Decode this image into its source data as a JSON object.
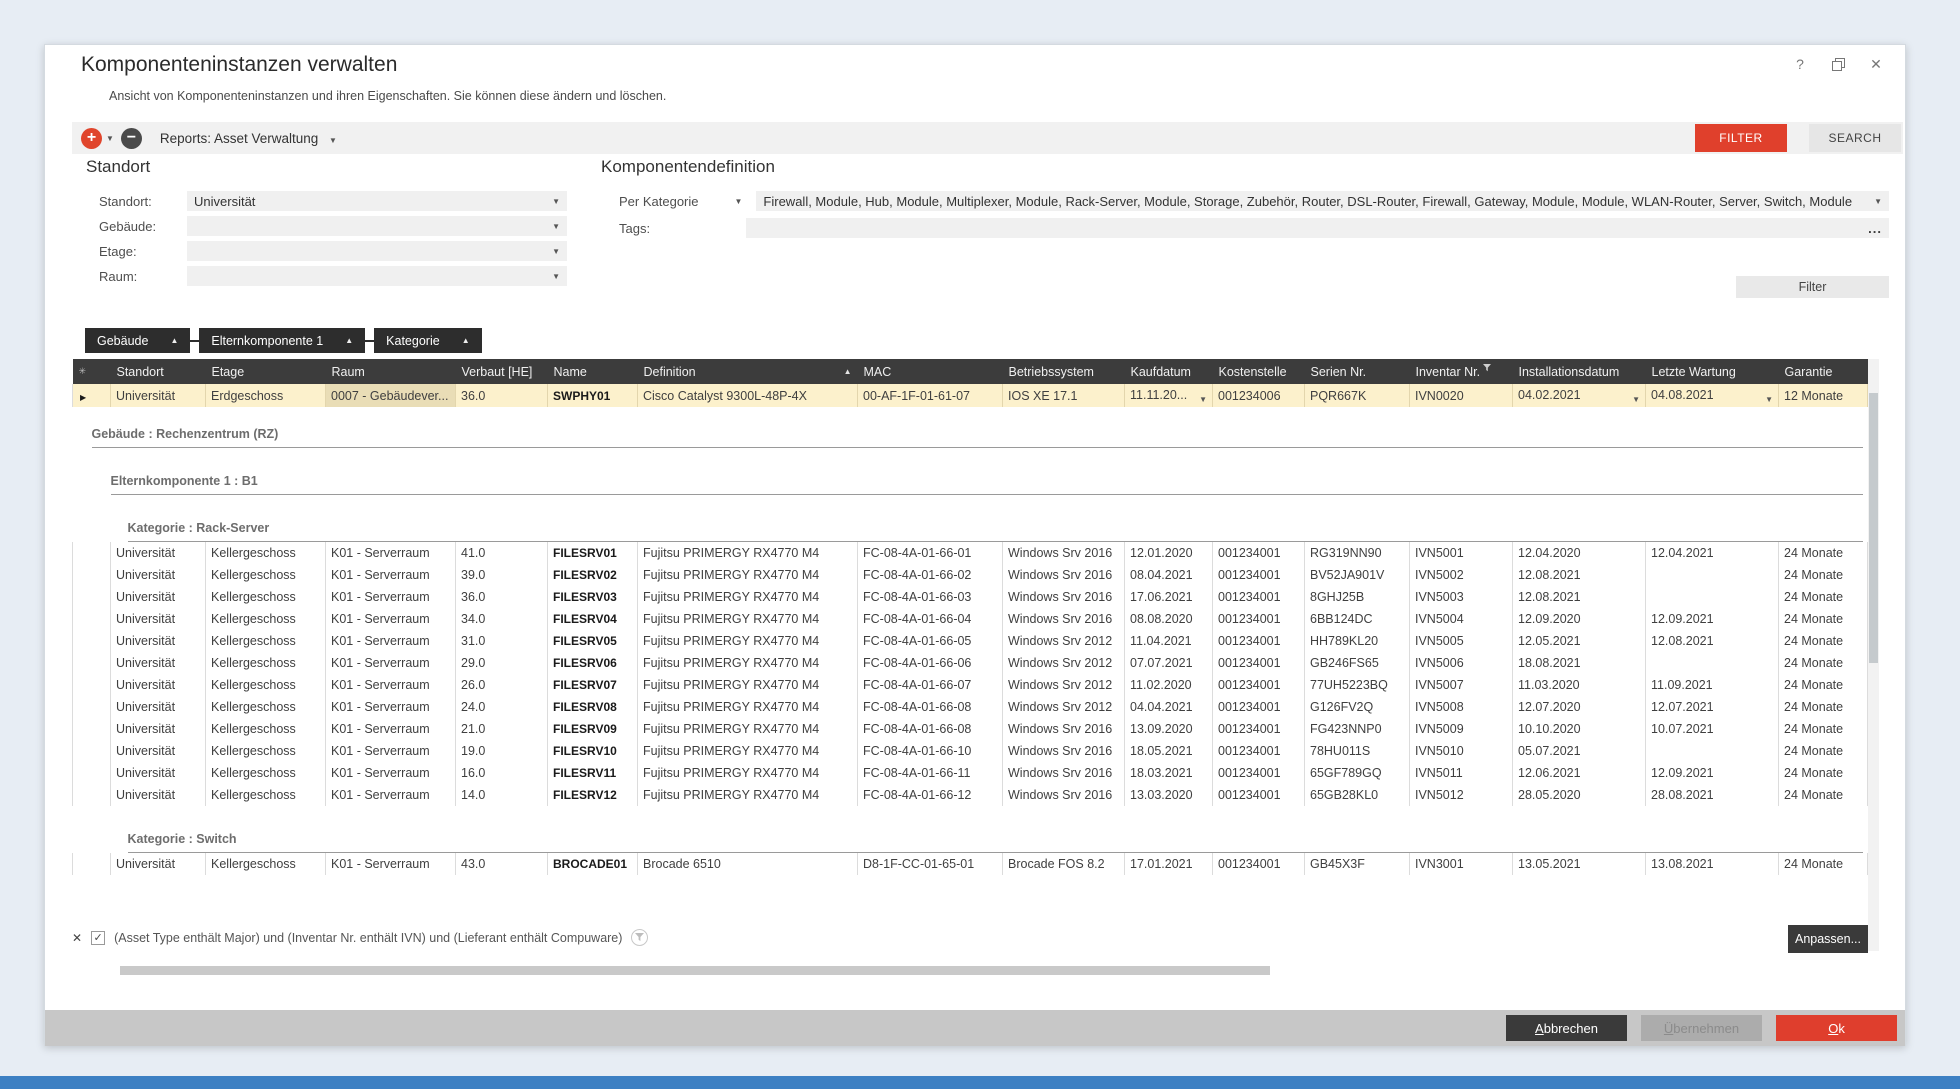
{
  "window": {
    "title": "Komponenteninstanzen verwalten",
    "subtitle": "Ansicht von Komponenteninstanzen und ihren Eigenschaften. Sie können diese ändern und löschen."
  },
  "icons": {
    "add": "+",
    "remove": "−",
    "caret_down": "▼",
    "caret_up": "▲",
    "sort_asc": "▲",
    "row_marker": "▶",
    "close": "✕",
    "help": "?",
    "more": "...",
    "check": "✓",
    "asterisk": "✳"
  },
  "colors": {
    "accent_red": "#e0402c",
    "dark_button": "#3a3a3a",
    "selected_row_bg": "#fcf1cc",
    "selected_cell_bg": "#e9ddb6",
    "header_bg": "#3c3c3c",
    "taskbar_blue": "#3d80c3"
  },
  "toolbar": {
    "reports_label": "Reports: Asset Verwaltung",
    "filter_button": "FILTER",
    "search_button": "SEARCH"
  },
  "standort_section": {
    "heading": "Standort",
    "fields": [
      {
        "label": "Standort:",
        "value": "Universität"
      },
      {
        "label": "Gebäude:",
        "value": ""
      },
      {
        "label": "Etage:",
        "value": ""
      },
      {
        "label": "Raum:",
        "value": ""
      }
    ]
  },
  "komponentendefinition": {
    "heading": "Komponentendefinition",
    "mode_label": "Per Kategorie",
    "categories_value": "Firewall, Module, Hub, Module, Multiplexer, Module, Rack-Server, Module, Storage, Zubehör, Router, DSL-Router, Firewall, Gateway, Module, Module, WLAN-Router, Server, Switch, Module",
    "tags_label": "Tags:",
    "tags_value": "",
    "tags_more": "...",
    "filter_button": "Filter"
  },
  "grouping_chips": [
    {
      "label": "Gebäude"
    },
    {
      "label": "Elternkomponente 1"
    },
    {
      "label": "Kategorie"
    }
  ],
  "table": {
    "columns": [
      {
        "label": "",
        "icon": "asterisk"
      },
      {
        "label": "Standort"
      },
      {
        "label": "Etage"
      },
      {
        "label": "Raum"
      },
      {
        "label": "Verbaut [HE]"
      },
      {
        "label": "Name"
      },
      {
        "label": "Definition",
        "sort": "asc"
      },
      {
        "label": "MAC"
      },
      {
        "label": "Betriebssystem"
      },
      {
        "label": "Kaufdatum"
      },
      {
        "label": "Kostenstelle"
      },
      {
        "label": "Serien Nr."
      },
      {
        "label": "Inventar Nr.",
        "filter": true
      },
      {
        "label": "Installationsdatum"
      },
      {
        "label": "Letzte Wartung"
      },
      {
        "label": "Garantie"
      }
    ],
    "pinned_row": {
      "cells": [
        "Universität",
        "Erdgeschoss",
        "0007 - Gebäudever...",
        "36.0",
        "SWPHY01",
        "Cisco Catalyst 9300L-48P-4X",
        "00-AF-1F-01-61-07",
        "IOS XE 17.1",
        "11.11.20...",
        "001234006",
        "PQR667K",
        "IVN0020",
        "04.02.2021",
        "04.08.2021",
        "12 Monate"
      ],
      "caret_cells": [
        8,
        12,
        13
      ],
      "highlight_cell": 2
    },
    "groups": [
      {
        "level": 1,
        "label": "Gebäude : Rechenzentrum (RZ)",
        "rows": []
      },
      {
        "level": 2,
        "label": "Elternkomponente 1 : B1",
        "rows": []
      },
      {
        "level": 3,
        "label": "Kategorie : Rack-Server",
        "rows": [
          [
            "Universität",
            "Kellergeschoss",
            "K01 - Serverraum",
            "41.0",
            "FILESRV01",
            "Fujitsu PRIMERGY RX4770 M4",
            "FC-08-4A-01-66-01",
            "Windows Srv 2016",
            "12.01.2020",
            "001234001",
            "RG319NN90",
            "IVN5001",
            "12.04.2020",
            "12.04.2021",
            "24 Monate"
          ],
          [
            "Universität",
            "Kellergeschoss",
            "K01 - Serverraum",
            "39.0",
            "FILESRV02",
            "Fujitsu PRIMERGY RX4770 M4",
            "FC-08-4A-01-66-02",
            "Windows Srv 2016",
            "08.04.2021",
            "001234001",
            "BV52JA901V",
            "IVN5002",
            "12.08.2021",
            "",
            "24 Monate"
          ],
          [
            "Universität",
            "Kellergeschoss",
            "K01 - Serverraum",
            "36.0",
            "FILESRV03",
            "Fujitsu PRIMERGY RX4770 M4",
            "FC-08-4A-01-66-03",
            "Windows Srv 2016",
            "17.06.2021",
            "001234001",
            "8GHJ25B",
            "IVN5003",
            "12.08.2021",
            "",
            "24 Monate"
          ],
          [
            "Universität",
            "Kellergeschoss",
            "K01 - Serverraum",
            "34.0",
            "FILESRV04",
            "Fujitsu PRIMERGY RX4770 M4",
            "FC-08-4A-01-66-04",
            "Windows Srv 2016",
            "08.08.2020",
            "001234001",
            "6BB124DC",
            "IVN5004",
            "12.09.2020",
            "12.09.2021",
            "24 Monate"
          ],
          [
            "Universität",
            "Kellergeschoss",
            "K01 - Serverraum",
            "31.0",
            "FILESRV05",
            "Fujitsu PRIMERGY RX4770 M4",
            "FC-08-4A-01-66-05",
            "Windows Srv 2012",
            "11.04.2021",
            "001234001",
            "HH789KL20",
            "IVN5005",
            "12.05.2021",
            "12.08.2021",
            "24 Monate"
          ],
          [
            "Universität",
            "Kellergeschoss",
            "K01 - Serverraum",
            "29.0",
            "FILESRV06",
            "Fujitsu PRIMERGY RX4770 M4",
            "FC-08-4A-01-66-06",
            "Windows Srv 2012",
            "07.07.2021",
            "001234001",
            "GB246FS65",
            "IVN5006",
            "18.08.2021",
            "",
            "24 Monate"
          ],
          [
            "Universität",
            "Kellergeschoss",
            "K01 - Serverraum",
            "26.0",
            "FILESRV07",
            "Fujitsu PRIMERGY RX4770 M4",
            "FC-08-4A-01-66-07",
            "Windows Srv 2012",
            "11.02.2020",
            "001234001",
            "77UH5223BQ",
            "IVN5007",
            "11.03.2020",
            "11.09.2021",
            "24 Monate"
          ],
          [
            "Universität",
            "Kellergeschoss",
            "K01 - Serverraum",
            "24.0",
            "FILESRV08",
            "Fujitsu PRIMERGY RX4770 M4",
            "FC-08-4A-01-66-08",
            "Windows Srv 2012",
            "04.04.2021",
            "001234001",
            "G126FV2Q",
            "IVN5008",
            "12.07.2020",
            "12.07.2021",
            "24 Monate"
          ],
          [
            "Universität",
            "Kellergeschoss",
            "K01 - Serverraum",
            "21.0",
            "FILESRV09",
            "Fujitsu PRIMERGY RX4770 M4",
            "FC-08-4A-01-66-08",
            "Windows Srv 2016",
            "13.09.2020",
            "001234001",
            "FG423NNP0",
            "IVN5009",
            "10.10.2020",
            "10.07.2021",
            "24 Monate"
          ],
          [
            "Universität",
            "Kellergeschoss",
            "K01 - Serverraum",
            "19.0",
            "FILESRV10",
            "Fujitsu PRIMERGY RX4770 M4",
            "FC-08-4A-01-66-10",
            "Windows Srv 2016",
            "18.05.2021",
            "001234001",
            "78HU011S",
            "IVN5010",
            "05.07.2021",
            "",
            "24 Monate"
          ],
          [
            "Universität",
            "Kellergeschoss",
            "K01 - Serverraum",
            "16.0",
            "FILESRV11",
            "Fujitsu PRIMERGY RX4770 M4",
            "FC-08-4A-01-66-11",
            "Windows Srv 2016",
            "18.03.2021",
            "001234001",
            "65GF789GQ",
            "IVN5011",
            "12.06.2021",
            "12.09.2021",
            "24 Monate"
          ],
          [
            "Universität",
            "Kellergeschoss",
            "K01 - Serverraum",
            "14.0",
            "FILESRV12",
            "Fujitsu PRIMERGY RX4770 M4",
            "FC-08-4A-01-66-12",
            "Windows Srv 2016",
            "13.03.2020",
            "001234001",
            "65GB28KL0",
            "IVN5012",
            "28.05.2020",
            "28.08.2021",
            "24 Monate"
          ]
        ]
      },
      {
        "level": 3,
        "label": "Kategorie : Switch",
        "rows": [
          [
            "Universität",
            "Kellergeschoss",
            "K01 - Serverraum",
            "43.0",
            "BROCADE01",
            "Brocade 6510",
            "D8-1F-CC-01-65-01",
            "Brocade FOS 8.2",
            "17.01.2021",
            "001234001",
            "GB45X3F",
            "IVN3001",
            "13.05.2021",
            "13.08.2021",
            "24 Monate"
          ]
        ]
      }
    ]
  },
  "filter_bar": {
    "checked": true,
    "expression": "(Asset Type enthält Major) und (Inventar Nr. enthält IVN) und (Lieferant enthält Compuware)",
    "anpassen_button": "Anpassen..."
  },
  "footer": {
    "abbrechen": "Abbrechen",
    "uebernehmen": "Übernehmen",
    "ok": "Ok"
  }
}
